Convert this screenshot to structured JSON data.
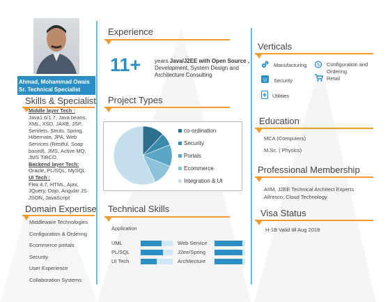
{
  "profile": {
    "name": "Ahmad, Mohammad Owais",
    "title": "Sr. Technical Specialist"
  },
  "skills": {
    "heading": "Skills & Specialist",
    "middle_label": "Middle layer Tech :",
    "middle_text": "Java1.6/1.7, Java beans, XML, XSD, JAXB, JSP, Servlets, Struts, Spring, Hibernate, JPA, Web Services (Restful, Soap based), JMS, Active MQ, JMS TIBCO,",
    "backend_label": "Backend layer Tech:",
    "backend_text": "Oracle, PL/SQL, MySQL",
    "ui_label": "UI Tech :",
    "ui_text": "Flex 4.7, HTML, Ajax, JQuery, Dojo, Angular JS JSON, JavaScript"
  },
  "domain": {
    "heading": "Domain Expertise",
    "items": [
      "Middleware Technologies",
      "Configuration & Ordering",
      "Ecommerce portals",
      "Security",
      "User Experience",
      "Collaboration Systems"
    ]
  },
  "experience": {
    "heading": "Experience",
    "years": "11+",
    "text_pre": "years ",
    "text_bold": "Java/J2EE with Open Source ,",
    "text_post": " Development, System Design and Architecture Consulting"
  },
  "project_types": {
    "heading": "Project Types"
  },
  "chart_data": {
    "type": "pie",
    "categories": [
      "co-ordination",
      "Security",
      "Portals",
      "Ecommerce",
      "Integration & UI"
    ],
    "values": [
      12,
      7,
      12,
      12,
      57
    ],
    "colors": [
      "#2e6e8e",
      "#3a8bab",
      "#5aa6c4",
      "#8dc3da",
      "#c2dfeb"
    ],
    "legend": "right"
  },
  "tech_skills": {
    "heading": "Technical Skills",
    "sub": "Application",
    "items": [
      {
        "label": "UML",
        "level": 0.65
      },
      {
        "label": "Web Service",
        "level": 0.9
      },
      {
        "label": "PL/SQL",
        "level": 0.7
      },
      {
        "label": "J2ee/Spring",
        "level": 0.9
      },
      {
        "label": "UI Tech",
        "level": 0.5
      },
      {
        "label": "Architecture",
        "level": 0.9
      }
    ]
  },
  "verticals": {
    "heading": "Verticals",
    "manufacturing": "Manufacturing",
    "configuration": "Configuration and Ordering",
    "security": "Security",
    "retail": "Retail",
    "utilities": "Utilities"
  },
  "education": {
    "heading": "Education",
    "items": [
      "MCA  (Computers)",
      "M.Sc. ( Physics)"
    ]
  },
  "membership": {
    "heading": "Professional Membership",
    "text": "AIIM, J2EE Technical Architect Experts Alfresco, Cloud Technology"
  },
  "visa": {
    "heading": "Visa Status",
    "text": "H-1B Valid till Aug 2018"
  },
  "colors": {
    "accent": "#2b8fc6",
    "orange": "#f29a2e"
  }
}
